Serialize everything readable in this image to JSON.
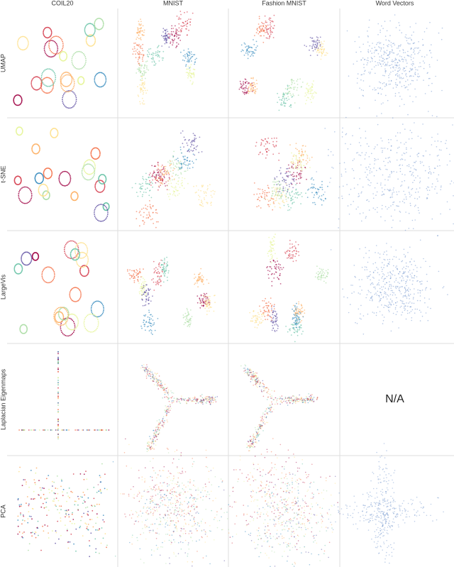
{
  "columns": [
    "COIL20",
    "MNIST",
    "Fashion MNIST",
    "Word Vectors"
  ],
  "rows": [
    "UMAP",
    "t-SNE",
    "LargeVis",
    "Laplacian Eigenmaps",
    "PCA"
  ],
  "missing_label": "N/A"
}
